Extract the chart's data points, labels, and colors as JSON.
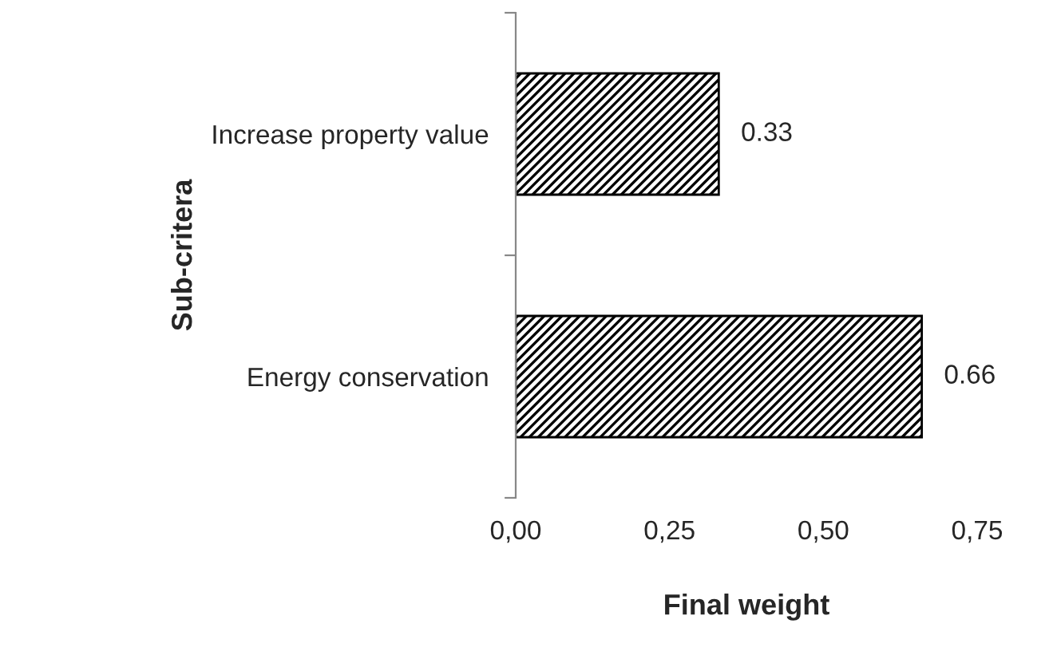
{
  "chart_data": {
    "type": "bar",
    "orientation": "horizontal",
    "xlabel": "Final weight",
    "ylabel": "Sub-critera",
    "categories": [
      "Increase property value",
      "Energy conservation"
    ],
    "values": [
      0.33,
      0.66
    ],
    "color": "#000000",
    "data_labels": true,
    "xlim": [
      0,
      0.75
    ],
    "xticks": [
      {
        "value": 0,
        "label": "0,00"
      },
      {
        "value": 0.25,
        "label": "0,25"
      },
      {
        "value": 0.5,
        "label": "0,50"
      },
      {
        "value": 0.75,
        "label": "0,75"
      }
    ],
    "grid": false,
    "legend": false
  }
}
